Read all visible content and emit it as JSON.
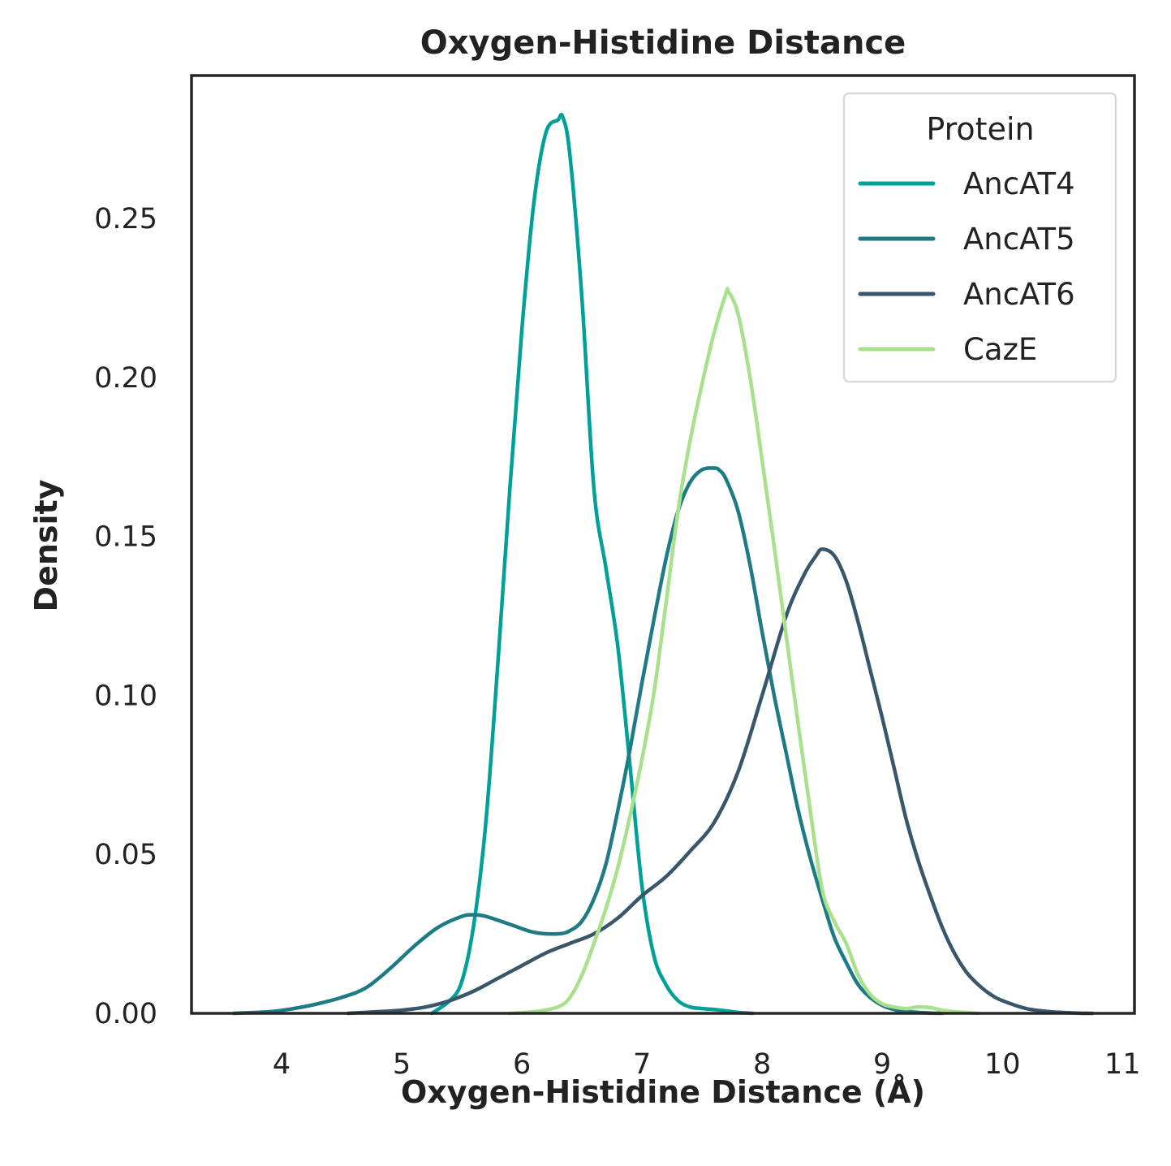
{
  "chart_data": {
    "type": "line",
    "title": "Oxygen-Histidine Distance",
    "xlabel": "Oxygen-Histidine Distance (Å)",
    "ylabel": "Density",
    "xlim": [
      3.25,
      11.1
    ],
    "ylim": [
      0,
      0.295
    ],
    "xticks": [
      4,
      5,
      6,
      7,
      8,
      9,
      10,
      11
    ],
    "xtick_labels": [
      "4",
      "5",
      "6",
      "7",
      "8",
      "9",
      "10",
      "11"
    ],
    "yticks": [
      0,
      0.05,
      0.1,
      0.15,
      0.2,
      0.25
    ],
    "ytick_labels": [
      "0.00",
      "0.05",
      "0.10",
      "0.15",
      "0.20",
      "0.25"
    ],
    "grid": false,
    "legend": {
      "title": "Protein",
      "position": "top-right"
    },
    "series": [
      {
        "name": "AncAT4",
        "color": "#00a099",
        "x": [
          5.25,
          5.4,
          5.5,
          5.6,
          5.7,
          5.8,
          5.9,
          6.0,
          6.1,
          6.2,
          6.3,
          6.34,
          6.4,
          6.5,
          6.6,
          6.7,
          6.8,
          6.9,
          7.0,
          7.1,
          7.2,
          7.3,
          7.4,
          7.5,
          7.6,
          7.7,
          7.8,
          7.92
        ],
        "y": [
          0.0,
          0.004,
          0.01,
          0.028,
          0.06,
          0.11,
          0.165,
          0.215,
          0.255,
          0.277,
          0.281,
          0.282,
          0.27,
          0.225,
          0.165,
          0.14,
          0.115,
          0.078,
          0.04,
          0.018,
          0.009,
          0.004,
          0.002,
          0.0015,
          0.0012,
          0.0008,
          0.0003,
          0.0
        ]
      },
      {
        "name": "AncAT5",
        "color": "#1e7b85",
        "x": [
          3.6,
          3.9,
          4.1,
          4.3,
          4.5,
          4.7,
          4.9,
          5.1,
          5.3,
          5.5,
          5.6,
          5.7,
          5.9,
          6.1,
          6.3,
          6.4,
          6.5,
          6.6,
          6.7,
          6.8,
          6.9,
          7.0,
          7.1,
          7.2,
          7.3,
          7.4,
          7.5,
          7.6,
          7.64,
          7.7,
          7.8,
          7.9,
          8.0,
          8.1,
          8.2,
          8.3,
          8.4,
          8.5,
          8.6,
          8.7,
          8.8,
          8.9,
          9.0,
          9.1,
          9.2,
          9.3,
          9.4,
          9.5
        ],
        "y": [
          0.0,
          0.0005,
          0.0015,
          0.003,
          0.005,
          0.008,
          0.014,
          0.021,
          0.027,
          0.0305,
          0.031,
          0.0305,
          0.028,
          0.0255,
          0.025,
          0.026,
          0.029,
          0.036,
          0.047,
          0.064,
          0.083,
          0.104,
          0.124,
          0.143,
          0.158,
          0.167,
          0.171,
          0.1715,
          0.171,
          0.168,
          0.158,
          0.141,
          0.12,
          0.1,
          0.082,
          0.064,
          0.049,
          0.036,
          0.024,
          0.016,
          0.009,
          0.005,
          0.0025,
          0.0012,
          0.0006,
          0.0003,
          0.0001,
          0.0
        ]
      },
      {
        "name": "AncAT6",
        "color": "#3a566a",
        "x": [
          4.55,
          4.8,
          5.0,
          5.2,
          5.4,
          5.6,
          5.8,
          6.0,
          6.2,
          6.4,
          6.6,
          6.8,
          7.0,
          7.2,
          7.4,
          7.6,
          7.8,
          8.0,
          8.2,
          8.35,
          8.45,
          8.5,
          8.6,
          8.7,
          8.8,
          8.9,
          9.0,
          9.1,
          9.2,
          9.3,
          9.4,
          9.5,
          9.6,
          9.7,
          9.8,
          9.9,
          10.0,
          10.2,
          10.4,
          10.6,
          10.75
        ],
        "y": [
          0.0,
          0.0005,
          0.001,
          0.002,
          0.004,
          0.007,
          0.011,
          0.015,
          0.019,
          0.022,
          0.025,
          0.03,
          0.037,
          0.043,
          0.051,
          0.06,
          0.076,
          0.1,
          0.125,
          0.138,
          0.144,
          0.146,
          0.144,
          0.136,
          0.123,
          0.108,
          0.093,
          0.077,
          0.061,
          0.048,
          0.037,
          0.027,
          0.019,
          0.013,
          0.009,
          0.006,
          0.004,
          0.0015,
          0.0005,
          0.0001,
          0.0
        ]
      },
      {
        "name": "CazE",
        "color": "#a9e08c",
        "x": [
          5.9,
          6.1,
          6.3,
          6.4,
          6.5,
          6.6,
          6.7,
          6.8,
          6.9,
          7.0,
          7.1,
          7.2,
          7.3,
          7.4,
          7.5,
          7.6,
          7.7,
          7.72,
          7.8,
          7.9,
          8.0,
          8.1,
          8.2,
          8.3,
          8.4,
          8.5,
          8.6,
          8.7,
          8.8,
          8.9,
          9.0,
          9.1,
          9.2,
          9.3,
          9.4,
          9.5,
          9.6,
          9.8
        ],
        "y": [
          0.0,
          0.0005,
          0.002,
          0.005,
          0.012,
          0.022,
          0.033,
          0.046,
          0.062,
          0.08,
          0.101,
          0.129,
          0.158,
          0.18,
          0.198,
          0.214,
          0.2265,
          0.227,
          0.22,
          0.2,
          0.174,
          0.147,
          0.119,
          0.091,
          0.064,
          0.039,
          0.029,
          0.022,
          0.012,
          0.006,
          0.003,
          0.002,
          0.0015,
          0.002,
          0.0018,
          0.001,
          0.0005,
          0.0
        ]
      }
    ]
  }
}
